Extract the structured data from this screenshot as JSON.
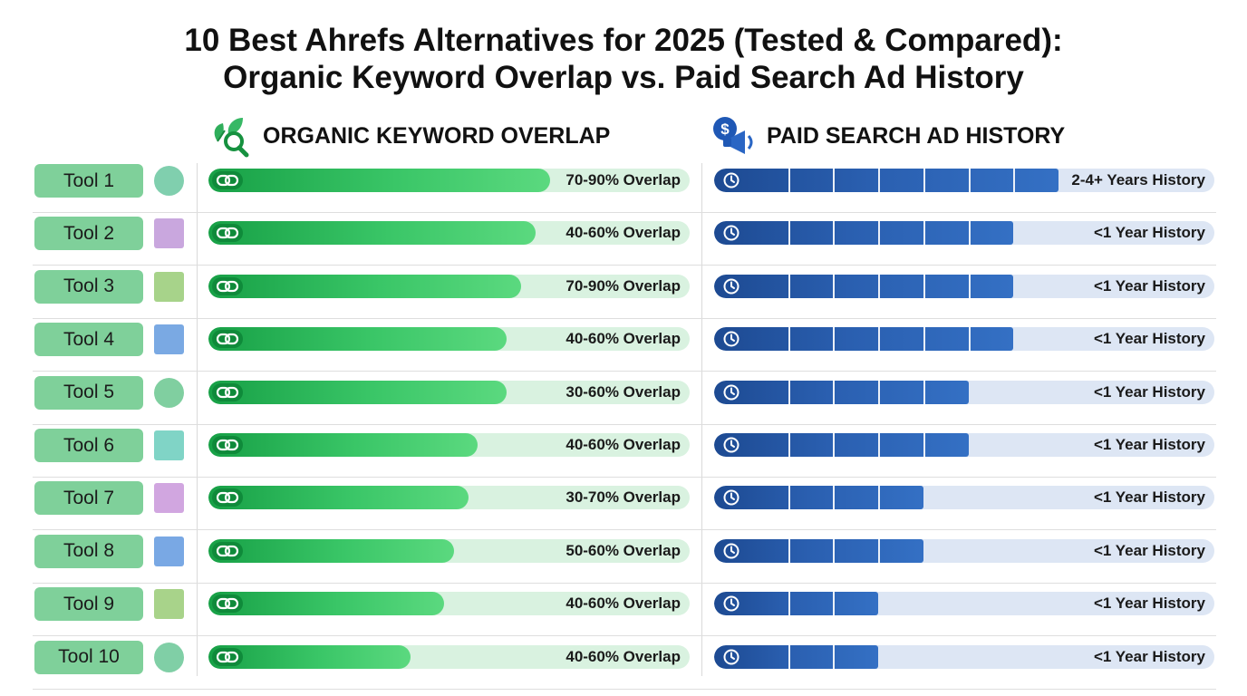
{
  "title": {
    "line1": "10 Best Ahrefs Alternatives for 2025 (Tested & Compared):",
    "line2": "Organic Keyword Overlap vs. Paid Search Ad History"
  },
  "chart_data": {
    "type": "bar",
    "panels": [
      {
        "header": "ORGANIC KEYWORD OVERLAP",
        "header_icon": "leaf-magnifier-icon",
        "bar_icon": "link-icon",
        "color": "#22a84f",
        "track_color": "#d9f2e0",
        "unit": "relative bar length",
        "value_range": [
          0,
          1
        ]
      },
      {
        "header": "PAID SEARCH AD HISTORY",
        "header_icon": "dollar-megaphone-icon",
        "bar_icon": "clock-icon",
        "color": "#23559f",
        "track_color": "#dde6f4",
        "unit": "segments",
        "max_segments": 7
      }
    ],
    "rows": [
      {
        "tool": "Tool 1",
        "marker": {
          "shape": "circle",
          "color": "#80cfae"
        },
        "organic_label": "70-90% Overlap",
        "organic_value": 0.71,
        "paid_label": "2-4+ Years History",
        "paid_segments": 7
      },
      {
        "tool": "Tool 2",
        "marker": {
          "shape": "square",
          "color": "#c9a7de"
        },
        "organic_label": "40-60% Overlap",
        "organic_value": 0.68,
        "paid_label": "<1 Year History",
        "paid_segments": 6
      },
      {
        "tool": "Tool 3",
        "marker": {
          "shape": "square",
          "color": "#a7d38a"
        },
        "organic_label": "70-90% Overlap",
        "organic_value": 0.65,
        "paid_label": "<1 Year History",
        "paid_segments": 6
      },
      {
        "tool": "Tool 4",
        "marker": {
          "shape": "square",
          "color": "#7aa9e3"
        },
        "organic_label": "40-60% Overlap",
        "organic_value": 0.62,
        "paid_label": "<1 Year History",
        "paid_segments": 6
      },
      {
        "tool": "Tool 5",
        "marker": {
          "shape": "circle",
          "color": "#80cfa0"
        },
        "organic_label": "30-60% Overlap",
        "organic_value": 0.62,
        "paid_label": "<1 Year History",
        "paid_segments": 5
      },
      {
        "tool": "Tool 6",
        "marker": {
          "shape": "square",
          "color": "#80d4c6"
        },
        "organic_label": "40-60% Overlap",
        "organic_value": 0.56,
        "paid_label": "<1 Year History",
        "paid_segments": 5
      },
      {
        "tool": "Tool 7",
        "marker": {
          "shape": "square",
          "color": "#d1a6e0"
        },
        "organic_label": "30-70% Overlap",
        "organic_value": 0.54,
        "paid_label": "<1 Year History",
        "paid_segments": 4
      },
      {
        "tool": "Tool 8",
        "marker": {
          "shape": "square",
          "color": "#79a8e4"
        },
        "organic_label": "50-60% Overlap",
        "organic_value": 0.51,
        "paid_label": "<1 Year History",
        "paid_segments": 4
      },
      {
        "tool": "Tool 9",
        "marker": {
          "shape": "square",
          "color": "#a8d38a"
        },
        "organic_label": "40-60% Overlap",
        "organic_value": 0.49,
        "paid_label": "<1 Year History",
        "paid_segments": 3
      },
      {
        "tool": "Tool 10",
        "marker": {
          "shape": "circle",
          "color": "#80cfa6"
        },
        "organic_label": "40-60% Overlap",
        "organic_value": 0.42,
        "paid_label": "<1 Year History",
        "paid_segments": 3
      }
    ]
  }
}
